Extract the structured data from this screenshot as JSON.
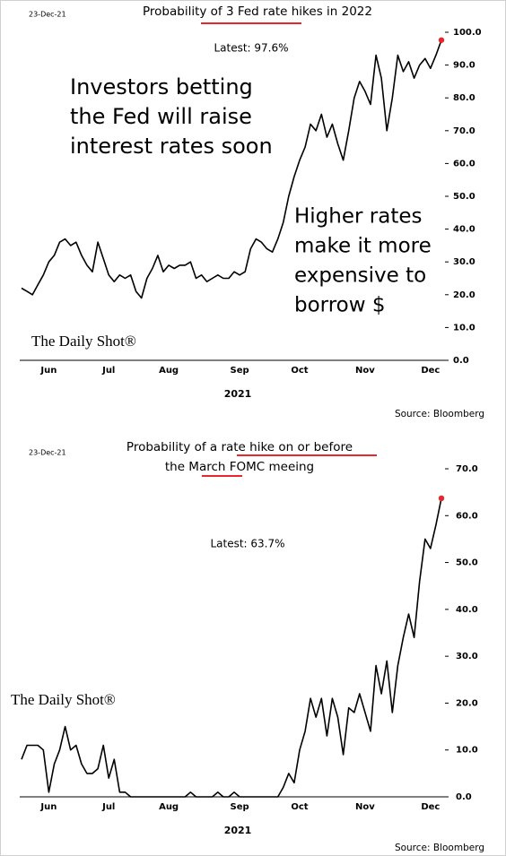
{
  "chart_data": [
    {
      "type": "line",
      "date": "23-Dec-21",
      "title": "Probability of 3 Fed rate hikes in 2022",
      "annotation": "Latest:  97.6%",
      "red_note": [
        "Investors betting",
        "the Fed will raise",
        "interest rates soon"
      ],
      "blue_note": [
        "Higher rates",
        "make it more",
        "expensive to",
        "borrow $"
      ],
      "logo": "The Daily Shot®",
      "xlabel": "2021",
      "source": "Source: Bloomberg",
      "color": "#000000",
      "latest_color": "#e8262b",
      "categories": [
        null,
        null,
        null,
        null,
        null,
        "Jun",
        null,
        null,
        null,
        null,
        null,
        null,
        null,
        null,
        null,
        null,
        "Jul",
        null,
        null,
        null,
        null,
        null,
        null,
        null,
        null,
        null,
        null,
        "Aug",
        null,
        null,
        null,
        null,
        null,
        null,
        null,
        null,
        null,
        null,
        null,
        null,
        "Sep",
        null,
        null,
        null,
        null,
        null,
        null,
        null,
        null,
        null,
        null,
        "Oct",
        null,
        null,
        null,
        null,
        null,
        null,
        null,
        null,
        null,
        null,
        null,
        "Nov",
        null,
        null,
        null,
        null,
        null,
        null,
        null,
        null,
        null,
        null,
        null,
        "Dec",
        null,
        null
      ],
      "values": [
        22,
        21,
        20,
        23,
        26,
        30,
        32,
        36,
        37,
        35,
        36,
        32,
        29,
        27,
        36,
        31,
        26,
        24,
        26,
        25,
        26,
        21,
        19,
        25,
        28,
        32,
        27,
        29,
        28,
        29,
        29,
        30,
        25,
        26,
        24,
        25,
        26,
        25,
        25,
        27,
        26,
        27,
        34,
        37,
        36,
        34,
        33,
        37,
        42,
        50,
        56,
        61,
        65,
        72,
        70,
        75,
        68,
        72,
        66,
        61,
        70,
        80,
        85,
        82,
        78,
        93,
        86,
        70,
        80,
        93,
        88,
        91,
        86,
        90,
        92,
        89,
        93,
        97.6
      ],
      "ylim": [
        0,
        100
      ],
      "yticks": [
        {
          "value": 0,
          "label": "0.0"
        },
        {
          "value": 10,
          "label": "10.0"
        },
        {
          "value": 20,
          "label": "20.0"
        },
        {
          "value": 30,
          "label": "30.0"
        },
        {
          "value": 40,
          "label": "40.0"
        },
        {
          "value": 50,
          "label": "50.0"
        },
        {
          "value": 60,
          "label": "60.0"
        },
        {
          "value": 70,
          "label": "70.0"
        },
        {
          "value": 80,
          "label": "80.0"
        },
        {
          "value": 90,
          "label": "90.0"
        },
        {
          "value": 100,
          "label": "100.0"
        }
      ]
    },
    {
      "type": "line",
      "date": "23-Dec-21",
      "title": "Probability of a rate hike on or before",
      "subtitle": "the March FOMC meeing",
      "annotation": "Latest:  63.7%",
      "logo": "The Daily Shot®",
      "xlabel": "2021",
      "source": "Source: Bloomberg",
      "color": "#000000",
      "latest_color": "#e8262b",
      "categories": [
        null,
        null,
        null,
        null,
        null,
        "Jun",
        null,
        null,
        null,
        null,
        null,
        null,
        null,
        null,
        null,
        null,
        "Jul",
        null,
        null,
        null,
        null,
        null,
        null,
        null,
        null,
        null,
        null,
        "Aug",
        null,
        null,
        null,
        null,
        null,
        null,
        null,
        null,
        null,
        null,
        null,
        null,
        "Sep",
        null,
        null,
        null,
        null,
        null,
        null,
        null,
        null,
        null,
        null,
        "Oct",
        null,
        null,
        null,
        null,
        null,
        null,
        null,
        null,
        null,
        null,
        null,
        "Nov",
        null,
        null,
        null,
        null,
        null,
        null,
        null,
        null,
        null,
        null,
        null,
        "Dec",
        null,
        null
      ],
      "values": [
        8,
        11,
        11,
        11,
        10,
        1,
        7,
        10,
        15,
        10,
        11,
        7,
        5,
        5,
        6,
        11,
        4,
        8,
        1,
        1,
        0,
        0,
        0,
        0,
        0,
        0,
        0,
        0,
        0,
        0,
        0,
        1,
        0,
        0,
        0,
        0,
        1,
        0,
        0,
        1,
        0,
        0,
        0,
        0,
        0,
        0,
        0,
        0,
        2,
        5,
        3,
        10,
        14,
        21,
        17,
        21,
        13,
        21,
        17,
        9,
        19,
        18,
        22,
        18,
        14,
        28,
        22,
        29,
        18,
        28,
        34,
        39,
        34,
        46,
        55,
        53,
        58,
        63.7
      ],
      "ylim": [
        0,
        70
      ],
      "yticks": [
        {
          "value": 0,
          "label": "0.0"
        },
        {
          "value": 10,
          "label": "10.0"
        },
        {
          "value": 20,
          "label": "20.0"
        },
        {
          "value": 30,
          "label": "30.0"
        },
        {
          "value": 40,
          "label": "40.0"
        },
        {
          "value": 50,
          "label": "50.0"
        },
        {
          "value": 60,
          "label": "60.0"
        },
        {
          "value": 70,
          "label": "70.0"
        }
      ]
    }
  ]
}
